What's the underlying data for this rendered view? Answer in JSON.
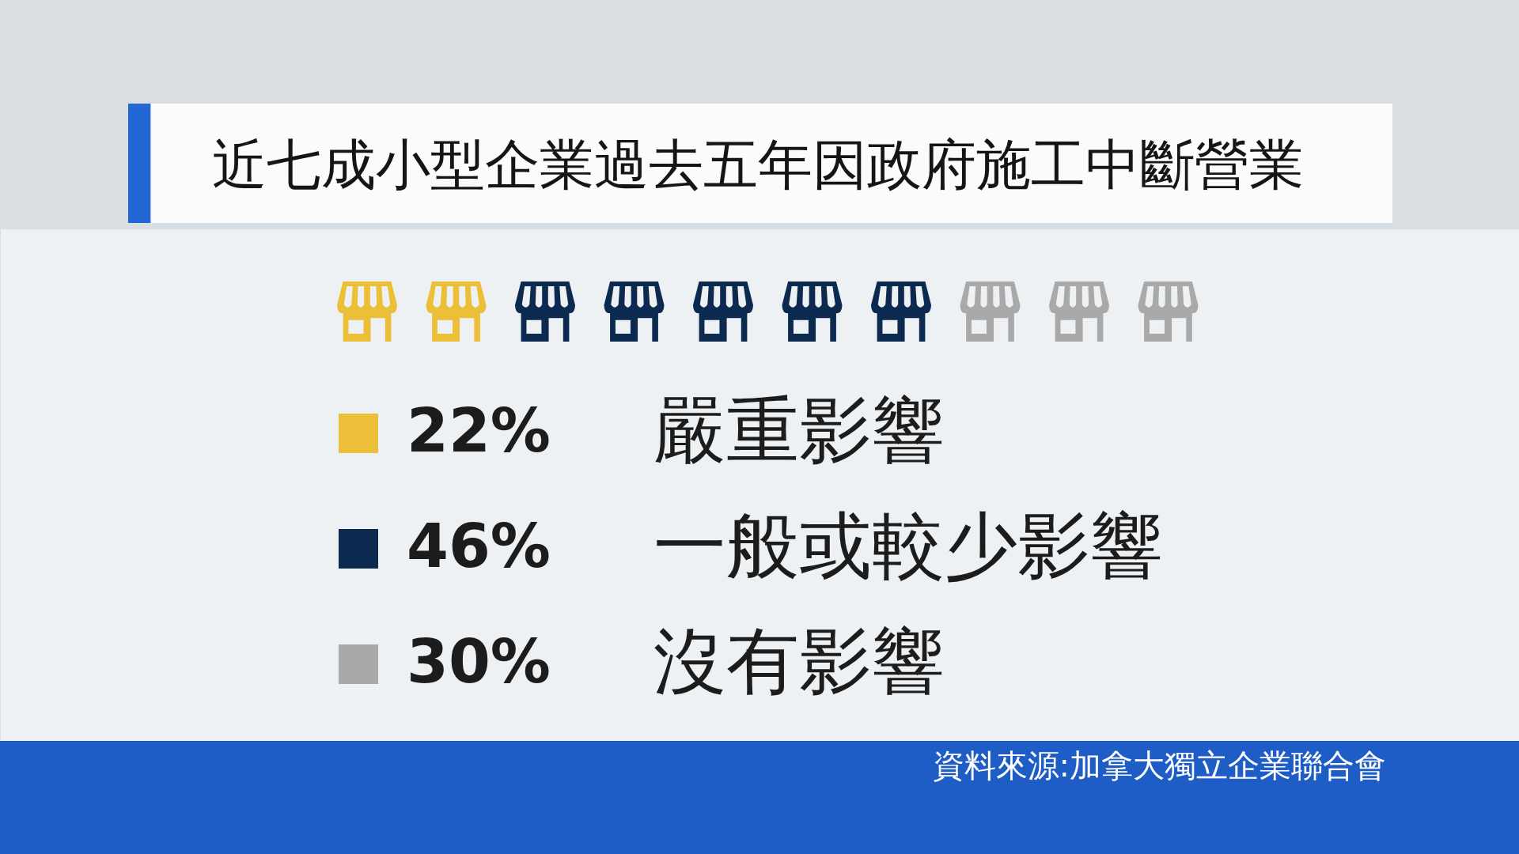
{
  "chart_data": {
    "type": "other",
    "title": "近七成小型企業過去五年因政府施工中斷營業",
    "categories": [
      "嚴重影響",
      "一般或較少影響",
      "沒有影響"
    ],
    "values": [
      22,
      46,
      30
    ],
    "value_labels": [
      "22%",
      "46%",
      "30%"
    ],
    "colors": [
      "#ecbf38",
      "#0c2a4f",
      "#a9a9a9"
    ],
    "annotations": [
      "資料來源:加拿大獨立企業聯合會"
    ]
  }
}
